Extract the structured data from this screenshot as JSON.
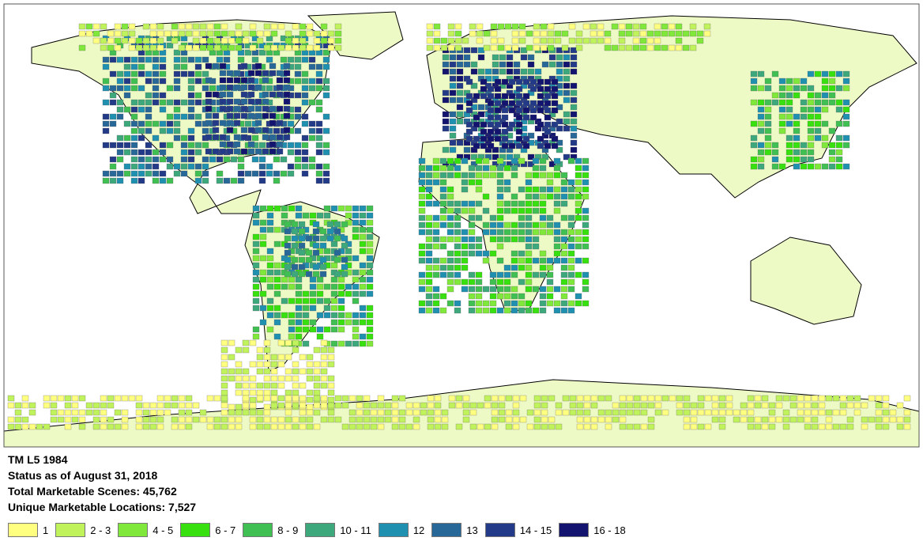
{
  "title": "TM L5 1984",
  "status": "Status as of August 31, 2018",
  "total_scenes": "Total Marketable Scenes:  45,762",
  "unique_locations": "Unique Marketable Locations:  7,527",
  "colors": {
    "ocean": "#ffffff",
    "land": "#eefac6",
    "border": "#000000"
  },
  "legend": [
    {
      "label": "1",
      "color": "#ffff80"
    },
    {
      "label": "2 - 3",
      "color": "#c0f25c"
    },
    {
      "label": "4 - 5",
      "color": "#80e83a"
    },
    {
      "label": "6 - 7",
      "color": "#38e010"
    },
    {
      "label": "8 - 9",
      "color": "#40c052"
    },
    {
      "label": "10 - 11",
      "color": "#3ca87c"
    },
    {
      "label": "12",
      "color": "#2090b0"
    },
    {
      "label": "13",
      "color": "#286898"
    },
    {
      "label": "14 - 15",
      "color": "#223a88"
    },
    {
      "label": "16 - 18",
      "color": "#121470"
    }
  ]
}
